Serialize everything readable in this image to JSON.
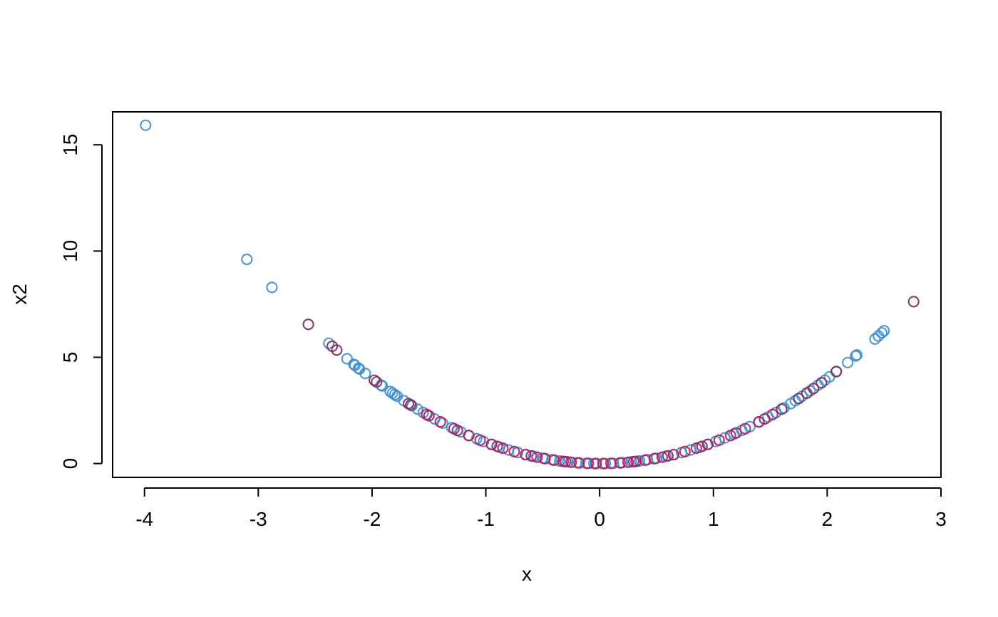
{
  "chart_data": {
    "type": "scatter",
    "title": "",
    "xlabel": "x",
    "ylabel": "x2",
    "xlim": [
      -4.28,
      3.0
    ],
    "ylim": [
      -0.65,
      16.55
    ],
    "x_ticks": [
      -4,
      -3,
      -2,
      -1,
      0,
      1,
      2,
      3
    ],
    "y_ticks": [
      0,
      5,
      10,
      15
    ],
    "x_tick_labels": [
      "-4",
      "-3",
      "-2",
      "-1",
      "0",
      "1",
      "2",
      "3"
    ],
    "y_tick_labels": [
      "0",
      "5",
      "10",
      "15"
    ],
    "grid": false,
    "legend": "none",
    "colors": {
      "blue": "#3d8fd1",
      "purple": "#7b2f63",
      "crimson": "#b5195b"
    },
    "series": [
      {
        "color": "#3d8fd1",
        "x": [
          -3.99,
          -3.1,
          -2.88,
          -2.38,
          -2.22,
          -2.16,
          -2.15,
          -2.12,
          -2.11,
          -2.06,
          -1.92,
          -1.91,
          -1.84,
          -1.82,
          -1.8,
          -1.78,
          -1.72,
          -1.65,
          -1.6,
          -1.55,
          -1.45,
          -1.38,
          -1.3,
          -1.22,
          -1.15,
          -1.08,
          -1.02,
          -0.95,
          -0.88,
          -0.8,
          -0.72,
          -0.65,
          -0.58,
          -0.5,
          -0.42,
          -0.35,
          -0.28,
          -0.2,
          -0.12,
          -0.05,
          0.05,
          0.12,
          0.2,
          0.28,
          0.35,
          0.42,
          0.5,
          0.58,
          0.65,
          0.72,
          0.8,
          0.88,
          0.95,
          1.02,
          1.1,
          1.18,
          1.25,
          1.32,
          1.4,
          1.48,
          1.55,
          1.62,
          1.68,
          1.72,
          1.78,
          1.85,
          1.92,
          1.98,
          2.02,
          2.08,
          2.18,
          2.25,
          2.26,
          2.42,
          2.45,
          2.48,
          2.5
        ],
        "y": [
          15.92,
          9.61,
          8.29,
          5.66,
          4.93,
          4.67,
          4.62,
          4.49,
          4.45,
          4.24,
          3.69,
          3.65,
          3.39,
          3.31,
          3.24,
          3.17,
          2.96,
          2.72,
          2.56,
          2.4,
          2.1,
          1.9,
          1.69,
          1.49,
          1.32,
          1.17,
          1.04,
          0.9,
          0.77,
          0.64,
          0.52,
          0.42,
          0.34,
          0.25,
          0.18,
          0.12,
          0.08,
          0.04,
          0.01,
          0.0,
          0.0,
          0.01,
          0.04,
          0.08,
          0.12,
          0.18,
          0.25,
          0.34,
          0.42,
          0.52,
          0.64,
          0.77,
          0.9,
          1.04,
          1.21,
          1.39,
          1.56,
          1.74,
          1.96,
          2.19,
          2.4,
          2.62,
          2.82,
          2.96,
          3.17,
          3.42,
          3.69,
          3.92,
          4.08,
          4.33,
          4.75,
          5.06,
          5.11,
          5.86,
          6.0,
          6.15,
          6.25
        ]
      },
      {
        "color": "#7b2f63",
        "x": [
          -2.56,
          -2.35,
          -2.31,
          -1.98,
          -1.96,
          -1.68,
          -1.66,
          -1.5,
          -1.25,
          -0.9,
          -0.6,
          -0.3,
          0.3,
          0.6,
          0.9,
          1.2,
          1.45,
          1.6,
          1.75,
          1.82,
          1.88,
          1.95,
          2.08,
          2.76
        ],
        "y": [
          6.55,
          5.52,
          5.34,
          3.92,
          3.84,
          2.82,
          2.76,
          2.25,
          1.56,
          0.81,
          0.36,
          0.09,
          0.09,
          0.36,
          0.81,
          1.44,
          2.1,
          2.56,
          3.06,
          3.31,
          3.53,
          3.8,
          4.33,
          7.62
        ]
      },
      {
        "color": "#b5195b",
        "x": [
          -1.52,
          -1.4,
          -1.28,
          -1.15,
          -1.05,
          -0.95,
          -0.85,
          -0.75,
          -0.65,
          -0.55,
          -0.48,
          -0.4,
          -0.32,
          -0.25,
          -0.18,
          -0.1,
          -0.03,
          0.03,
          0.1,
          0.18,
          0.25,
          0.32,
          0.4,
          0.48,
          0.55,
          0.65,
          0.75,
          0.85,
          0.95,
          1.05,
          1.15,
          1.28,
          1.4,
          1.52
        ],
        "y": [
          2.31,
          1.96,
          1.64,
          1.32,
          1.1,
          0.9,
          0.72,
          0.56,
          0.42,
          0.3,
          0.23,
          0.16,
          0.1,
          0.06,
          0.03,
          0.01,
          0.0,
          0.0,
          0.01,
          0.03,
          0.06,
          0.1,
          0.16,
          0.23,
          0.3,
          0.42,
          0.56,
          0.72,
          0.9,
          1.1,
          1.32,
          1.64,
          1.96,
          2.31
        ]
      }
    ]
  }
}
